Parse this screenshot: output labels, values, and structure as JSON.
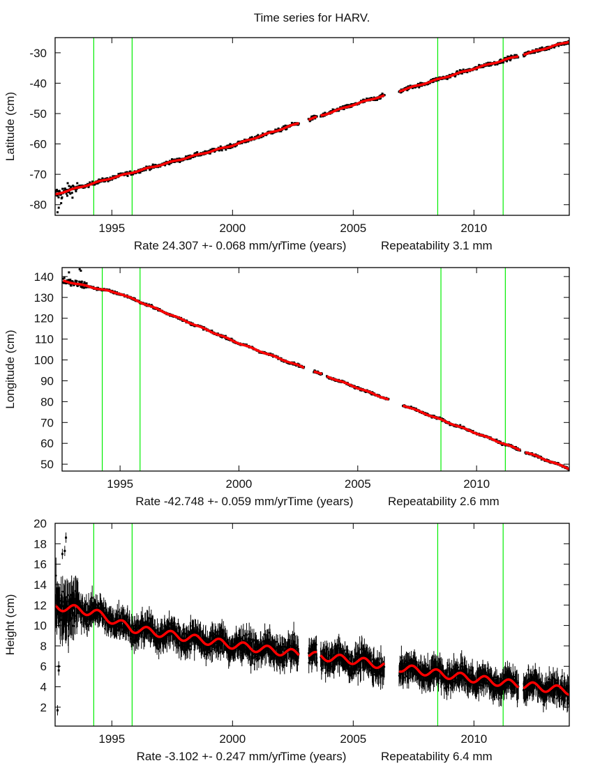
{
  "title": "Time series for HARV.",
  "colors": {
    "data": "#000000",
    "model": "#ff0000",
    "break_line": "#00ee00",
    "frame": "#000000"
  },
  "chart_data": [
    {
      "type": "scatter",
      "ylabel": "Latitude (cm)",
      "xlabel_parts": {
        "rate": "Rate 24.307 +- 0.068 mm/yr",
        "time": "Time (years)",
        "repeatability": "Repeatability 3.1 mm"
      },
      "xlim": [
        1992.65,
        2013.95
      ],
      "ylim": [
        -83.5,
        -25
      ],
      "xticks": [
        1995,
        2000,
        2005,
        2010
      ],
      "xtick_labels": [
        "1995",
        "2000",
        "2005",
        "2010"
      ],
      "yticks": [
        -80,
        -70,
        -60,
        -50,
        -40,
        -30
      ],
      "ytick_labels": [
        "-80",
        "-70",
        "-60",
        "-50",
        "-40",
        "-30"
      ],
      "break_years": [
        1994.25,
        1995.84,
        2008.5,
        2011.21
      ],
      "segments": [
        [
          1992.65,
          2002.75
        ],
        [
          2003.15,
          2003.5
        ],
        [
          2003.65,
          2006.3
        ],
        [
          2006.9,
          2011.85
        ],
        [
          2012.05,
          2013.95
        ]
      ],
      "model_knots": [
        [
          1992.65,
          -76.6
        ],
        [
          1995,
          -71.2
        ],
        [
          2000,
          -60.5
        ],
        [
          2005,
          -47.1
        ],
        [
          2010,
          -35.2
        ],
        [
          2013.95,
          -26.3
        ]
      ],
      "annual_amplitude": 0.15,
      "noise_sigma": 0.45,
      "error_bars": false
    },
    {
      "type": "scatter",
      "ylabel": "Longitude (cm)",
      "xlabel_parts": {
        "rate": "Rate -42.748 +- 0.059 mm/yr",
        "time": "Time (years)",
        "repeatability": "Repeatability 2.6 mm"
      },
      "xlim": [
        1992.56,
        2013.9
      ],
      "ylim": [
        46.7,
        144.3
      ],
      "xticks": [
        1995,
        2000,
        2005,
        2010
      ],
      "xtick_labels": [
        "1995",
        "2000",
        "2005",
        "2010"
      ],
      "yticks": [
        50,
        60,
        70,
        80,
        90,
        100,
        110,
        120,
        130,
        140
      ],
      "ytick_labels": [
        "50",
        "60",
        "70",
        "80",
        "90",
        "100",
        "110",
        "120",
        "130",
        "140"
      ],
      "break_years": [
        1994.25,
        1995.84,
        2008.5,
        2011.21
      ],
      "segments": [
        [
          1992.6,
          2002.75
        ],
        [
          2003.15,
          2003.5
        ],
        [
          2003.7,
          2006.3
        ],
        [
          2006.9,
          2011.85
        ],
        [
          2012.05,
          2013.9
        ]
      ],
      "model_knots": [
        [
          1992.6,
          138.0
        ],
        [
          1995,
          131.8
        ],
        [
          2000,
          108.0
        ],
        [
          2005,
          86.6
        ],
        [
          2010,
          64.8
        ],
        [
          2013.9,
          47.8
        ]
      ],
      "annual_amplitude": 0.2,
      "noise_sigma": 0.4,
      "error_bars": false
    },
    {
      "type": "scatter",
      "ylabel": "Height (cm)",
      "xlabel_parts": {
        "rate": "Rate -3.102 +- 0.247 mm/yr",
        "time": "Time (years)",
        "repeatability": "Repeatability 6.4 mm"
      },
      "xlim": [
        1992.65,
        2013.95
      ],
      "ylim": [
        0.15,
        20
      ],
      "xticks": [
        1995,
        2000,
        2005,
        2010
      ],
      "xtick_labels": [
        "1995",
        "2000",
        "2005",
        "2010"
      ],
      "yticks": [
        2,
        4,
        6,
        8,
        10,
        12,
        14,
        16,
        18,
        20
      ],
      "ytick_labels": [
        "2",
        "4",
        "6",
        "8",
        "10",
        "12",
        "14",
        "16",
        "18",
        "20"
      ],
      "break_years": [
        1994.25,
        1995.84,
        2008.5,
        2011.21
      ],
      "segments": [
        [
          1992.65,
          2002.75
        ],
        [
          2003.15,
          2003.5
        ],
        [
          2003.65,
          2006.3
        ],
        [
          2006.9,
          2011.85
        ],
        [
          2012.05,
          2013.95
        ]
      ],
      "model_knots": [
        [
          1992.65,
          11.9
        ],
        [
          1994.25,
          11.3
        ],
        [
          1995.84,
          9.7
        ],
        [
          2000,
          8.1
        ],
        [
          2002.75,
          7.2
        ],
        [
          2005,
          6.6
        ],
        [
          2006.3,
          6.1
        ],
        [
          2008.5,
          5.3
        ],
        [
          2011.21,
          4.4
        ],
        [
          2013.95,
          3.6
        ]
      ],
      "annual_amplitude": 0.38,
      "noise_sigma": 0.75,
      "error_bars": true
    }
  ]
}
